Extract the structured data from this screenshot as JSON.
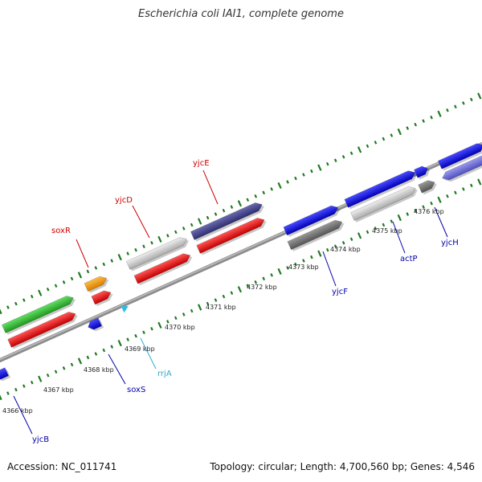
{
  "title": "Escherichia coli IAI1, complete genome",
  "accession": "Accession: NC_011741",
  "summary": "Topology: circular; Length: 4,700,560 bp; Genes: 4,546",
  "colors": {
    "backbone": "#8c8c8c",
    "tick_green": "#1f7a1f",
    "cds_red": "#e01010",
    "gene_blue": "#1010e0",
    "pseudo_gray": "#777777",
    "light_gray": "#cccccc",
    "navy": "#43438a",
    "lavender": "#6a6ad0",
    "green": "#33bb33",
    "orange": "#f39c12",
    "cyan": "#33bbe6",
    "label_red": "#cc0000",
    "label_blue": "#0000aa",
    "label_cyan": "#33aacc"
  },
  "scale_labels": [
    "4366 kbp",
    "4367 kbp",
    "4368 kbp",
    "4369 kbp",
    "4370 kbp",
    "4371 kbp",
    "4372 kbp",
    "4373 kbp",
    "4374 kbp",
    "4375 kbp",
    "4376 kbp"
  ],
  "gene_labels": [
    {
      "text": "soxR",
      "color_key": "label_red"
    },
    {
      "text": "yjcD",
      "color_key": "label_red"
    },
    {
      "text": "yjcE",
      "color_key": "label_red"
    },
    {
      "text": "yjcB",
      "color_key": "label_blue"
    },
    {
      "text": "soxS",
      "color_key": "label_blue"
    },
    {
      "text": "rrjA",
      "color_key": "label_cyan"
    },
    {
      "text": "yjcF",
      "color_key": "label_blue"
    },
    {
      "text": "actP",
      "color_key": "label_blue"
    },
    {
      "text": "yjcH",
      "color_key": "label_blue"
    }
  ]
}
